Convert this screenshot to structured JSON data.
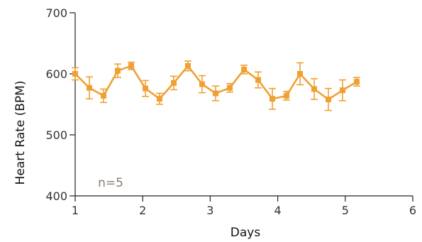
{
  "chart_data": {
    "type": "line",
    "xlabel": "Days",
    "ylabel": "Heart Rate (BPM)",
    "xlim": [
      1,
      6
    ],
    "ylim": [
      400,
      700
    ],
    "x_ticks": [
      1,
      2,
      3,
      4,
      5,
      6
    ],
    "y_ticks": [
      400,
      500,
      600,
      700
    ],
    "annotation": "n=5",
    "grid": false,
    "colors": {
      "series": "#F0A033",
      "annotation": "#8a7b72",
      "axis": "#222222"
    },
    "series": [
      {
        "x": [
          1.0,
          1.21,
          1.42,
          1.63,
          1.83,
          2.04,
          2.25,
          2.46,
          2.67,
          2.88,
          3.08,
          3.29,
          3.5,
          3.71,
          3.92,
          4.13,
          4.33,
          4.54,
          4.75,
          4.96,
          5.17
        ],
        "y": [
          600,
          577,
          564,
          605,
          613,
          576,
          559,
          585,
          613,
          583,
          568,
          577,
          607,
          590,
          559,
          564,
          600,
          575,
          558,
          573,
          587
        ],
        "err": [
          10,
          18,
          11,
          11,
          6,
          13,
          9,
          11,
          8,
          14,
          12,
          7,
          7,
          13,
          17,
          7,
          18,
          17,
          18,
          17,
          7
        ]
      }
    ]
  }
}
